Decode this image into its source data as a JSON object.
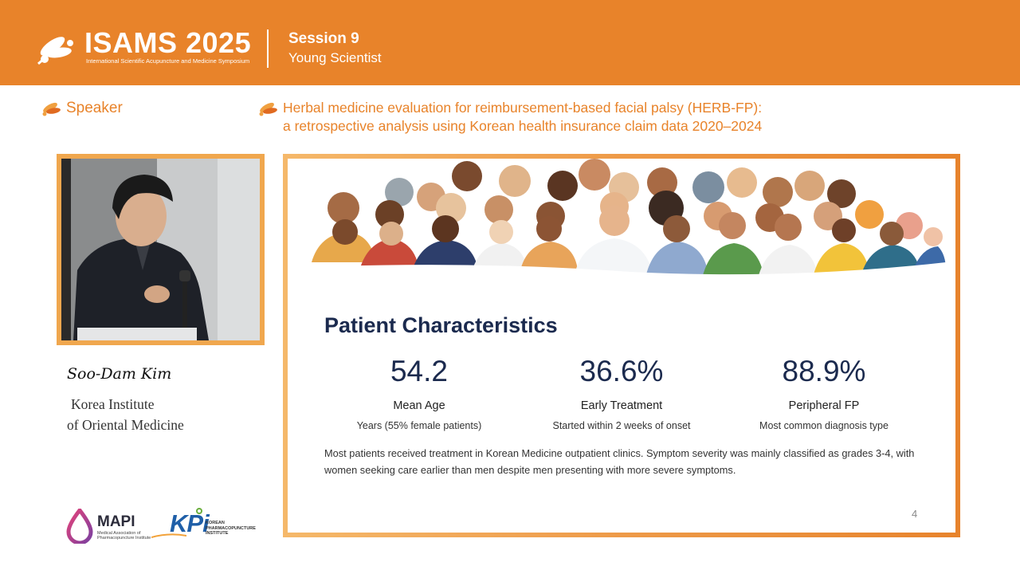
{
  "header": {
    "brand": "ISAMS 2025",
    "brand_subtitle": "International Scientific Acupuncture and Medicine Symposium",
    "session": "Session 9",
    "session_subtitle": "Young Scientist"
  },
  "speaker_section": {
    "label": "Speaker",
    "name": "Soo-Dam Kim",
    "org_line1": "Korea Institute",
    "org_line2": "of Oriental Medicine"
  },
  "talk": {
    "title_line1": "Herbal medicine evaluation for reimbursement-based facial palsy (HERB-FP):",
    "title_line2": "a retrospective analysis using Korean health insurance claim data 2020–2024"
  },
  "slide": {
    "heading": "Patient Characteristics",
    "stats": [
      {
        "value": "54.2",
        "label": "Mean Age",
        "desc": "Years (55% female patients)"
      },
      {
        "value": "36.6%",
        "label": "Early Treatment",
        "desc": "Started within 2 weeks of onset"
      },
      {
        "value": "88.9%",
        "label": "Peripheral FP",
        "desc": "Most common diagnosis type"
      }
    ],
    "note": "Most patients received treatment in Korean Medicine outpatient clinics. Symptom severity was mainly classified as grades 3-4, with women seeking care earlier than men despite men presenting with more severe symptoms.",
    "page_number": "4"
  },
  "sponsors": {
    "mapi_name": "MAPI",
    "mapi_subtitle": "Medical Association of Pharmacopuncture Institute",
    "kpi_name": "KPi",
    "kpi_subtitle": "KOREAN PHARMACOPUNCTURE INSTITUTE"
  },
  "colors": {
    "brand_orange": "#E8832A",
    "navy": "#1B2A4E",
    "kpi_blue": "#1F5FA8"
  }
}
